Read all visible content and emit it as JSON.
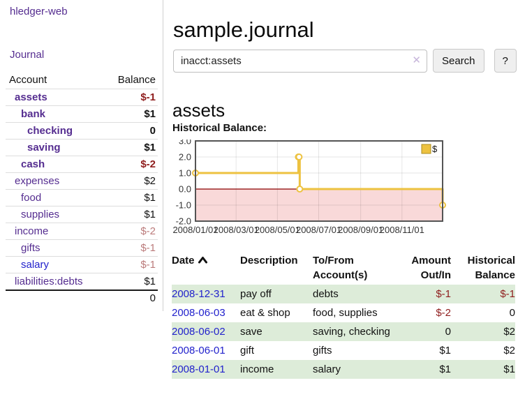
{
  "colors": {
    "purple": "#552d90",
    "link_blue": "#2222cc",
    "neg_strong": "#8f1d1d",
    "neg_weak": "#bb7b7b",
    "row_green": "#ddecd9",
    "chart_line": "#EDC240",
    "chart_negative_fill": "#f9d9d9",
    "chart_zero_line": "#8b0000",
    "button_bg": "#efefef"
  },
  "app": {
    "brand": "hledger-web",
    "nav_journal": "Journal"
  },
  "sidebar": {
    "header": {
      "account": "Account",
      "balance": "Balance"
    },
    "rows": [
      {
        "name": "assets",
        "balance": "$-1",
        "level": 1,
        "bold": true,
        "balance_style": "neg-strong",
        "link": "purple"
      },
      {
        "name": "bank",
        "balance": "$1",
        "level": 2,
        "bold": true,
        "balance_style": "pos",
        "link": "purple"
      },
      {
        "name": "checking",
        "balance": "0",
        "level": 3,
        "bold": true,
        "balance_style": "pos",
        "link": "purple"
      },
      {
        "name": "saving",
        "balance": "$1",
        "level": 3,
        "bold": true,
        "balance_style": "pos",
        "link": "purple"
      },
      {
        "name": "cash",
        "balance": "$-2",
        "level": 2,
        "bold": true,
        "balance_style": "neg-strong",
        "link": "purple"
      },
      {
        "name": "expenses",
        "balance": "$2",
        "level": 1,
        "bold": false,
        "balance_style": "pos",
        "link": "purple"
      },
      {
        "name": "food",
        "balance": "$1",
        "level": 2,
        "bold": false,
        "balance_style": "pos",
        "link": "purple"
      },
      {
        "name": "supplies",
        "balance": "$1",
        "level": 2,
        "bold": false,
        "balance_style": "pos",
        "link": "purple"
      },
      {
        "name": "income",
        "balance": "$-2",
        "level": 1,
        "bold": false,
        "balance_style": "neg-weak",
        "link": "purple"
      },
      {
        "name": "gifts",
        "balance": "$-1",
        "level": 2,
        "bold": false,
        "balance_style": "neg-weak",
        "link": "purple"
      },
      {
        "name": "salary",
        "balance": "$-1",
        "level": 2,
        "bold": false,
        "balance_style": "neg-weak",
        "link": "blue"
      },
      {
        "name": "liabilities:debts",
        "balance": "$1",
        "level": 1,
        "bold": false,
        "balance_style": "pos",
        "link": "purple"
      }
    ],
    "total": "0"
  },
  "main": {
    "title": "sample.journal",
    "search": {
      "value": "inacct:assets",
      "clear": "✕",
      "button": "Search",
      "help": "?"
    },
    "account_heading": "assets",
    "chart_label": "Historical Balance:"
  },
  "chart_data": {
    "type": "line",
    "step": true,
    "title": "Historical Balance:",
    "series": [
      {
        "name": "$",
        "color": "#EDC240",
        "points": [
          [
            "2008-01-01",
            1
          ],
          [
            "2008-06-01",
            2
          ],
          [
            "2008-06-02",
            2
          ],
          [
            "2008-06-03",
            0
          ],
          [
            "2008-12-31",
            -1
          ]
        ]
      }
    ],
    "xrange": [
      "2008-01-01",
      "2008-12-31"
    ],
    "ylim": [
      -2,
      3
    ],
    "yticks": [
      3.0,
      2.0,
      1.0,
      0.0,
      -1.0,
      -2.0
    ],
    "xticks": [
      "2008/01/01",
      "2008/03/01",
      "2008/05/01",
      "2008/07/01",
      "2008/09/01",
      "2008/11/01"
    ],
    "grid": true,
    "legend_position": "top-right",
    "legend_label": "$"
  },
  "table": {
    "headers": {
      "date": "Date",
      "description": "Description",
      "accounts": "To/From Account(s)",
      "amount": "Amount Out/In",
      "balance": "Historical Balance"
    },
    "rows": [
      {
        "date": "2008-12-31",
        "description": "pay off",
        "accounts": "debts",
        "amount": "$-1",
        "balance": "$-1"
      },
      {
        "date": "2008-06-03",
        "description": "eat & shop",
        "accounts": "food, supplies",
        "amount": "$-2",
        "balance": "0"
      },
      {
        "date": "2008-06-02",
        "description": "save",
        "accounts": "saving, checking",
        "amount": "0",
        "balance": "$2"
      },
      {
        "date": "2008-06-01",
        "description": "gift",
        "accounts": "gifts",
        "amount": "$1",
        "balance": "$2"
      },
      {
        "date": "2008-01-01",
        "description": "income",
        "accounts": "salary",
        "amount": "$1",
        "balance": "$1"
      }
    ]
  }
}
